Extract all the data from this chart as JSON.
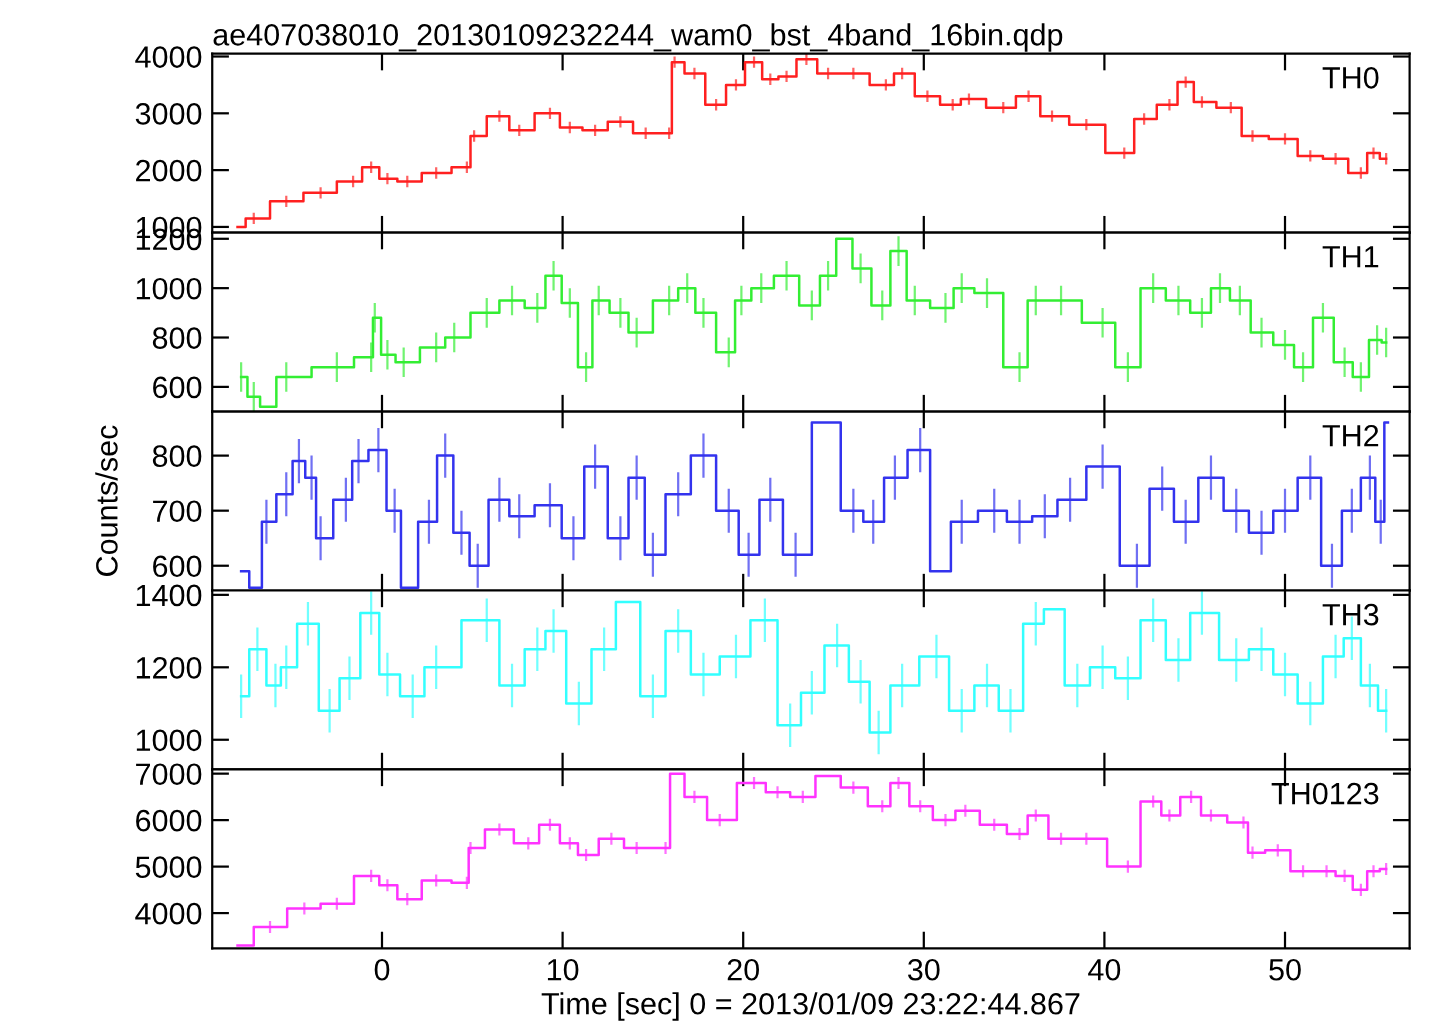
{
  "chart_data": [
    {
      "type": "step",
      "title": "ae407038010_20130109232244_wam0_bst_4band_16bin.qdp",
      "tick_labels": "y",
      "xlim": [
        -9.4,
        56.9
      ],
      "xticks": [
        0,
        10,
        20,
        30,
        40,
        50
      ],
      "ylim": [
        900,
        4050
      ],
      "yticks": [
        1000,
        2000,
        3000,
        4000
      ],
      "x": [
        -8.0,
        -7.1,
        -5.3,
        -3.4,
        -1.6,
        -0.6,
        0.3,
        1.4,
        3.0,
        4.7,
        5.1,
        6.5,
        7.6,
        9.3,
        10.4,
        11.8,
        13.2,
        14.6,
        15.9,
        16.2,
        17.3,
        18.5,
        19.6,
        20.6,
        21.5,
        22.4,
        23.5,
        24.7,
        26.1,
        27.9,
        28.8,
        30.2,
        31.6,
        32.5,
        34.4,
        35.8,
        37.1,
        39.0,
        41.1,
        42.2,
        43.6,
        44.5,
        45.4,
        47.0,
        48.2,
        50.0,
        51.4,
        52.8,
        54.2,
        54.9,
        55.6
      ],
      "series": [
        {
          "name": "TH0",
          "color": "#ff2020",
          "values": [
            1000,
            1150,
            1450,
            1600,
            1800,
            2050,
            1850,
            1800,
            1950,
            2050,
            2600,
            2950,
            2700,
            3000,
            2750,
            2700,
            2850,
            2650,
            2650,
            3900,
            3700,
            3150,
            3500,
            3900,
            3600,
            3650,
            3950,
            3700,
            3700,
            3500,
            3700,
            3300,
            3150,
            3250,
            3100,
            3300,
            2950,
            2800,
            2300,
            2900,
            3150,
            3550,
            3200,
            3100,
            2600,
            2550,
            2250,
            2200,
            1950,
            2300,
            2200
          ],
          "errors": [
            null,
            100,
            100,
            100,
            100,
            100,
            100,
            100,
            100,
            100,
            100,
            100,
            100,
            100,
            100,
            100,
            100,
            100,
            100,
            100,
            100,
            100,
            100,
            100,
            100,
            100,
            100,
            100,
            100,
            100,
            100,
            100,
            100,
            100,
            100,
            100,
            100,
            100,
            100,
            100,
            100,
            100,
            100,
            100,
            100,
            100,
            100,
            100,
            100,
            100,
            100
          ]
        }
      ]
    },
    {
      "type": "step",
      "tick_labels": "y",
      "xlim": [
        -9.4,
        56.9
      ],
      "xticks": [
        0,
        10,
        20,
        30,
        40,
        50
      ],
      "ylim": [
        500,
        1225
      ],
      "yticks": [
        600,
        800,
        1000,
        1200
      ],
      "x": [
        -7.8,
        -7.1,
        -6.4,
        -5.3,
        -2.5,
        -0.6,
        -0.4,
        0.3,
        1.2,
        3.0,
        4.0,
        5.8,
        7.2,
        8.6,
        9.5,
        10.4,
        11.3,
        12.0,
        13.2,
        14.1,
        15.9,
        16.9,
        17.8,
        19.2,
        19.9,
        21.0,
        22.4,
        23.8,
        24.7,
        25.6,
        26.5,
        27.7,
        28.6,
        29.5,
        31.2,
        32.1,
        33.5,
        35.3,
        36.2,
        37.6,
        39.9,
        41.3,
        42.7,
        44.1,
        45.4,
        46.4,
        47.5,
        48.7,
        50.0,
        51.0,
        52.1,
        53.3,
        54.2,
        55.1,
        55.6
      ],
      "series": [
        {
          "name": "TH1",
          "color": "#33ee33",
          "values": [
            640,
            560,
            520,
            640,
            680,
            720,
            880,
            730,
            700,
            760,
            800,
            900,
            950,
            920,
            1050,
            940,
            680,
            950,
            900,
            820,
            950,
            1000,
            900,
            740,
            950,
            1000,
            1050,
            930,
            1050,
            1200,
            1080,
            930,
            1150,
            950,
            920,
            1000,
            980,
            680,
            950,
            950,
            860,
            680,
            1000,
            950,
            900,
            1000,
            950,
            820,
            770,
            680,
            880,
            700,
            640,
            790,
            780
          ],
          "errors": [
            60,
            60,
            null,
            60,
            60,
            60,
            60,
            60,
            60,
            60,
            60,
            60,
            60,
            60,
            60,
            60,
            60,
            60,
            60,
            60,
            60,
            60,
            60,
            60,
            60,
            60,
            60,
            60,
            60,
            null,
            60,
            60,
            60,
            60,
            60,
            60,
            60,
            60,
            60,
            60,
            60,
            60,
            60,
            60,
            60,
            60,
            60,
            60,
            60,
            60,
            60,
            60,
            60,
            60,
            60
          ]
        }
      ]
    },
    {
      "type": "step",
      "tick_labels": "y",
      "ylabel": "Counts/sec",
      "xlim": [
        -9.4,
        56.9
      ],
      "xticks": [
        0,
        10,
        20,
        30,
        40,
        50
      ],
      "ylim": [
        555,
        880
      ],
      "yticks": [
        600,
        700,
        800
      ],
      "x": [
        -7.8,
        -6.9,
        -6.4,
        -5.3,
        -4.6,
        -3.9,
        -3.4,
        -2.0,
        -1.3,
        -0.2,
        0.7,
        1.4,
        2.6,
        3.5,
        4.4,
        5.3,
        6.5,
        7.6,
        9.3,
        10.6,
        11.8,
        13.2,
        14.1,
        15.0,
        16.4,
        17.8,
        19.2,
        20.3,
        21.5,
        22.9,
        24.7,
        26.1,
        27.2,
        28.4,
        29.8,
        30.9,
        32.1,
        33.9,
        35.3,
        36.7,
        38.1,
        39.9,
        41.8,
        43.2,
        44.5,
        45.9,
        47.3,
        48.7,
        50.0,
        51.4,
        52.6,
        53.7,
        54.7,
        55.3,
        55.7
      ],
      "series": [
        {
          "name": "TH2",
          "color": "#3333ee",
          "values": [
            590,
            560,
            680,
            730,
            790,
            760,
            650,
            720,
            790,
            810,
            700,
            560,
            680,
            800,
            660,
            600,
            720,
            690,
            710,
            650,
            780,
            650,
            760,
            620,
            730,
            800,
            700,
            620,
            720,
            620,
            860,
            700,
            680,
            760,
            810,
            590,
            680,
            700,
            680,
            690,
            720,
            780,
            600,
            740,
            680,
            760,
            700,
            660,
            700,
            760,
            600,
            700,
            760,
            680,
            860
          ],
          "errors": [
            null,
            null,
            40,
            40,
            40,
            40,
            40,
            40,
            40,
            40,
            40,
            null,
            40,
            40,
            40,
            40,
            40,
            40,
            40,
            40,
            40,
            40,
            40,
            40,
            40,
            40,
            40,
            40,
            40,
            40,
            null,
            40,
            40,
            40,
            40,
            null,
            40,
            40,
            40,
            40,
            40,
            40,
            40,
            40,
            40,
            40,
            40,
            40,
            40,
            40,
            40,
            40,
            40,
            40,
            null
          ]
        }
      ]
    },
    {
      "type": "step",
      "tick_labels": "y",
      "xlim": [
        -9.4,
        56.9
      ],
      "xticks": [
        0,
        10,
        20,
        30,
        40,
        50
      ],
      "ylim": [
        918,
        1412
      ],
      "yticks": [
        1000,
        1200,
        1400
      ],
      "x": [
        -7.8,
        -6.9,
        -5.9,
        -5.3,
        -4.1,
        -2.9,
        -1.8,
        -0.6,
        0.3,
        1.7,
        3.0,
        5.8,
        7.2,
        8.6,
        9.5,
        10.9,
        12.3,
        13.6,
        15.0,
        16.4,
        17.8,
        19.6,
        21.2,
        22.6,
        23.8,
        25.2,
        26.5,
        27.5,
        28.8,
        30.7,
        32.1,
        33.5,
        34.8,
        36.2,
        37.1,
        38.5,
        39.9,
        41.3,
        42.7,
        44.1,
        45.4,
        47.3,
        48.7,
        50.0,
        51.4,
        52.8,
        53.7,
        54.7,
        55.6
      ],
      "series": [
        {
          "name": "TH3",
          "color": "#33ffff",
          "values": [
            1120,
            1250,
            1150,
            1200,
            1320,
            1080,
            1170,
            1350,
            1180,
            1120,
            1200,
            1330,
            1150,
            1250,
            1300,
            1100,
            1250,
            1380,
            1120,
            1300,
            1180,
            1230,
            1330,
            1040,
            1130,
            1260,
            1160,
            1020,
            1150,
            1230,
            1080,
            1150,
            1080,
            1320,
            1360,
            1150,
            1200,
            1170,
            1330,
            1220,
            1350,
            1220,
            1250,
            1180,
            1100,
            1230,
            1280,
            1150,
            1080
          ],
          "errors": [
            60,
            60,
            60,
            60,
            60,
            60,
            60,
            60,
            60,
            60,
            60,
            60,
            60,
            60,
            60,
            60,
            60,
            null,
            60,
            60,
            60,
            60,
            60,
            60,
            60,
            60,
            60,
            60,
            60,
            60,
            60,
            60,
            60,
            60,
            null,
            60,
            60,
            60,
            60,
            60,
            60,
            60,
            60,
            60,
            60,
            60,
            60,
            60,
            60
          ]
        }
      ]
    },
    {
      "type": "step",
      "xlabel": "Time [sec] 0 = 2013/01/09 23:22:44.867",
      "xlim": [
        -9.4,
        56.9
      ],
      "xticks": [
        0,
        10,
        20,
        30,
        40,
        50
      ],
      "ylim": [
        3240,
        7090
      ],
      "yticks": [
        4000,
        5000,
        6000,
        7000
      ],
      "x": [
        -8.0,
        -6.2,
        -4.3,
        -2.5,
        -0.6,
        0.3,
        1.4,
        3.0,
        4.7,
        4.9,
        6.5,
        8.1,
        9.3,
        10.4,
        11.3,
        12.7,
        14.1,
        15.7,
        16.2,
        17.3,
        18.7,
        20.6,
        21.9,
        23.3,
        24.7,
        26.1,
        27.7,
        28.6,
        29.8,
        31.2,
        32.3,
        33.9,
        35.3,
        36.2,
        37.6,
        39.0,
        41.3,
        42.7,
        43.6,
        44.8,
        45.9,
        47.7,
        48.2,
        49.6,
        51.0,
        52.3,
        53.3,
        54.2,
        54.9,
        55.6
      ],
      "series": [
        {
          "name": "TH0123",
          "color": "#ff33ff",
          "values": [
            3300,
            3700,
            4100,
            4200,
            4800,
            4600,
            4300,
            4700,
            4650,
            5400,
            5800,
            5500,
            5900,
            5500,
            5250,
            5600,
            5400,
            5400,
            7000,
            6500,
            6000,
            6800,
            6600,
            6500,
            6950,
            6700,
            6300,
            6800,
            6300,
            6000,
            6200,
            5900,
            5700,
            6100,
            5600,
            5600,
            5000,
            6400,
            6100,
            6500,
            6100,
            5950,
            5300,
            5350,
            4900,
            4900,
            4800,
            4500,
            4900,
            4950
          ],
          "errors": [
            null,
            130,
            130,
            130,
            130,
            130,
            130,
            130,
            130,
            130,
            130,
            130,
            130,
            130,
            130,
            130,
            130,
            130,
            null,
            130,
            130,
            130,
            130,
            130,
            null,
            130,
            130,
            130,
            130,
            130,
            130,
            130,
            130,
            130,
            130,
            130,
            130,
            130,
            130,
            130,
            130,
            130,
            130,
            130,
            130,
            130,
            130,
            130,
            130,
            130
          ]
        }
      ]
    }
  ]
}
